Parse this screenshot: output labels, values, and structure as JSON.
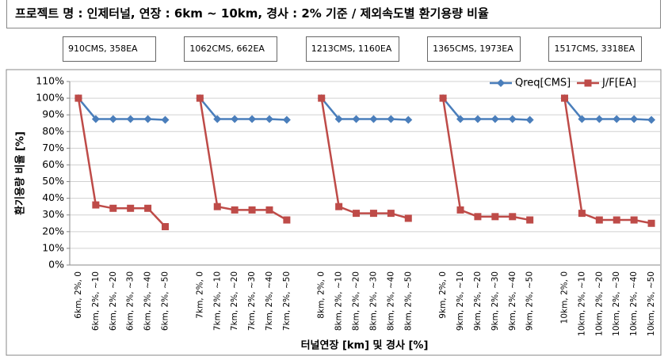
{
  "chart_data": {
    "type": "line",
    "title": "프로젝트 명 : 인제터널, 연장 : 6km ~ 10km, 경사 : 2% 기준 / 제외속도별 환기용량 비율",
    "annotations": [
      "910CMS, 358EA",
      "1062CMS, 662EA",
      "1213CMS, 1160EA",
      "1365CMS, 1973EA",
      "1517CMS, 3318EA"
    ],
    "y_label": "환기용량 비율 [%]",
    "x_label": "터널연장 [km] 및 경사 [%]",
    "categories": [
      "6km, 2%, 0",
      "6km, 2%, ~10",
      "6km, 2%, ~20",
      "6km, 2%, ~30",
      "6km, 2%, ~40",
      "6km, 2%, ~50",
      null,
      "7km, 2%, 0",
      "7km, 2%, ~10",
      "7km, 2%, ~20",
      "7km, 2%, ~30",
      "7km, 2%, ~40",
      "7km, 2%, ~50",
      null,
      "8km, 2%, 0",
      "8km, 2%, ~10",
      "8km, 2%, ~20",
      "8km, 2%, ~30",
      "8km, 2%, ~40",
      "8km, 2%, ~50",
      null,
      "9km, 2%, 0",
      "9km, 2%, ~10",
      "9km, 2%, ~20",
      "9km, 2%, ~30",
      "9km, 2%, ~40",
      "9km, 2%, ~50",
      null,
      "10km, 2%, 0",
      "10km, 2%, ~10",
      "10km, 2%, ~20",
      "10km, 2%, ~30",
      "10km, 2%, ~40",
      "10km, 2%, ~50"
    ],
    "series": [
      {
        "name": "Qreq[CMS]",
        "color": "#4a7ebb",
        "marker": "diamond",
        "values": [
          100,
          87.5,
          87.5,
          87.5,
          87.5,
          87,
          null,
          100,
          87.5,
          87.5,
          87.5,
          87.5,
          87,
          null,
          100,
          87.5,
          87.5,
          87.5,
          87.5,
          87,
          null,
          100,
          87.5,
          87.5,
          87.5,
          87.5,
          87,
          null,
          100,
          87.5,
          87.5,
          87.5,
          87.5,
          87
        ]
      },
      {
        "name": "J/F[EA]",
        "color": "#be4b48",
        "marker": "square",
        "values": [
          100,
          36,
          34,
          34,
          34,
          23,
          null,
          100,
          35,
          33,
          33,
          33,
          27,
          null,
          100,
          35,
          31,
          31,
          31,
          28,
          null,
          100,
          33,
          29,
          29,
          29,
          27,
          null,
          100,
          31,
          27,
          27,
          27,
          25
        ]
      }
    ],
    "ylim": [
      0,
      110
    ],
    "yticks": [
      {
        "value": 0,
        "label": "0%"
      },
      {
        "value": 10,
        "label": "10%"
      },
      {
        "value": 20,
        "label": "20%"
      },
      {
        "value": 30,
        "label": "30%"
      },
      {
        "value": 40,
        "label": "40%"
      },
      {
        "value": 50,
        "label": "50%"
      },
      {
        "value": 60,
        "label": "60%"
      },
      {
        "value": 70,
        "label": "70%"
      },
      {
        "value": 80,
        "label": "80%"
      },
      {
        "value": 90,
        "label": "90%"
      },
      {
        "value": 100,
        "label": "100%"
      },
      {
        "value": 110,
        "label": "110%"
      }
    ],
    "grid": true,
    "legend": "top-right"
  }
}
